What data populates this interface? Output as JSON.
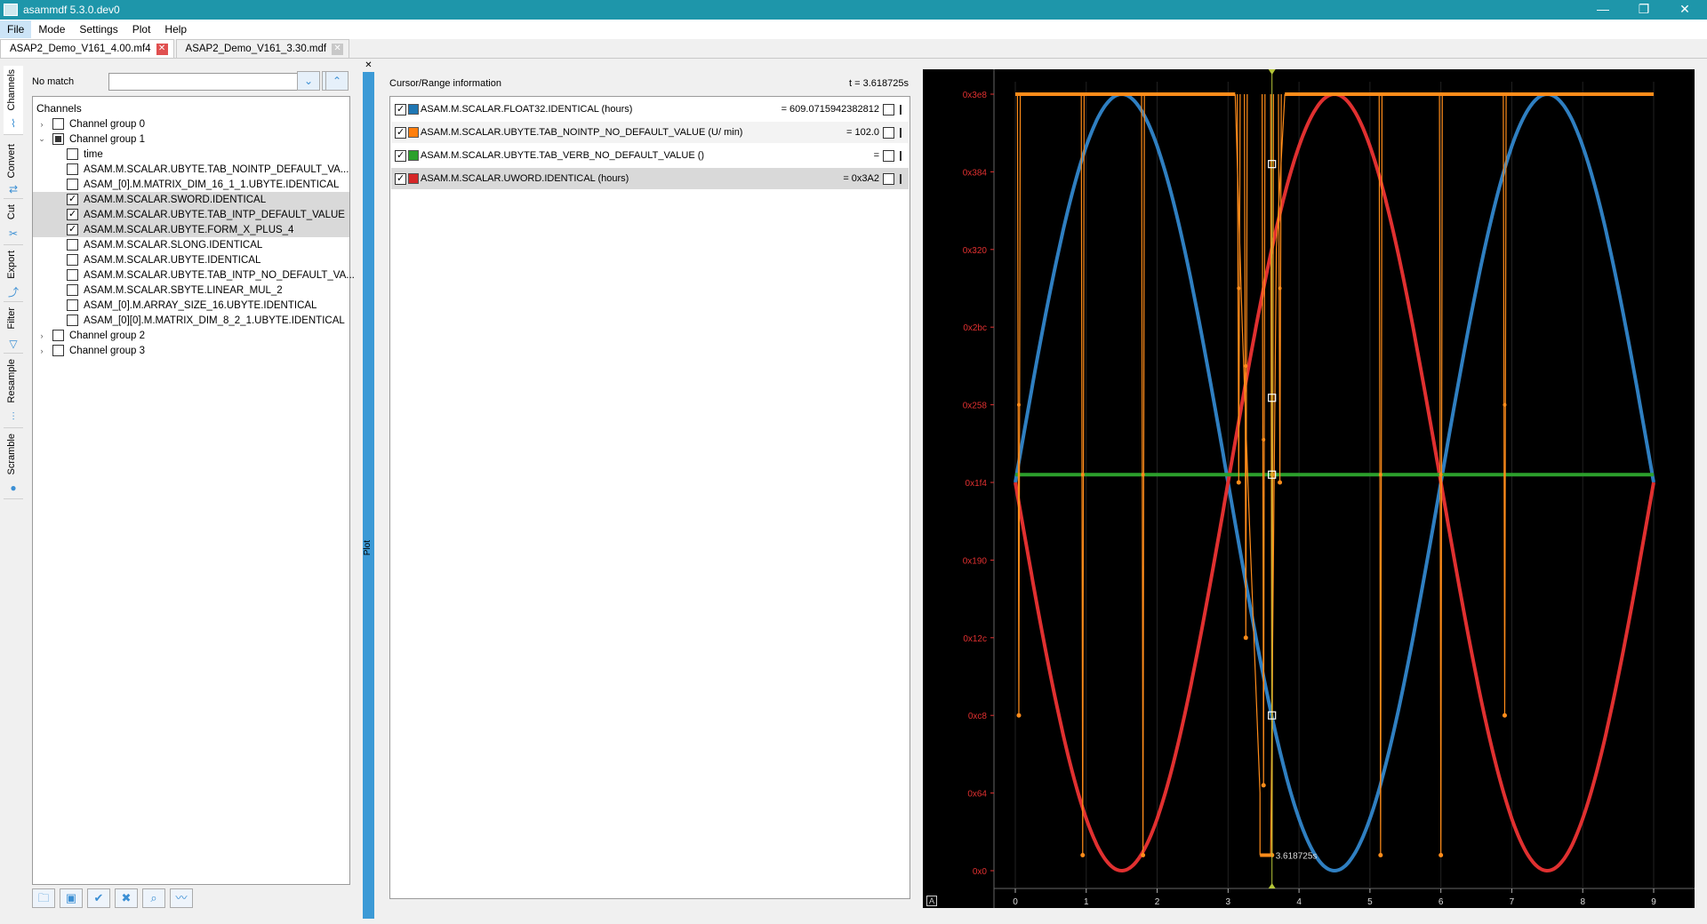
{
  "window": {
    "title": "asammdf 5.3.0.dev0",
    "controls": [
      "—",
      "❐",
      "✕"
    ]
  },
  "menu": [
    "File",
    "Mode",
    "Settings",
    "Plot",
    "Help"
  ],
  "file_tabs": [
    {
      "label": "ASAP2_Demo_V161_4.00.mf4",
      "active": true
    },
    {
      "label": "ASAP2_Demo_V161_3.30.mdf",
      "active": false
    }
  ],
  "side_tabs": [
    "Channels",
    "Convert",
    "Cut",
    "Export",
    "Filter",
    "Resample",
    "Scramble"
  ],
  "search": {
    "status": "No match",
    "value": ""
  },
  "tree": {
    "header": "Channels",
    "rows": [
      {
        "label": "Channel group 0",
        "level": 0,
        "expand": "›",
        "state": "none",
        "sel": false
      },
      {
        "label": "Channel group 1",
        "level": 0,
        "expand": "⌄",
        "state": "partial",
        "sel": false
      },
      {
        "label": "time",
        "level": 1,
        "expand": "",
        "state": "none",
        "sel": false
      },
      {
        "label": "ASAM.M.SCALAR.UBYTE.TAB_NOINTP_DEFAULT_VA...",
        "level": 1,
        "expand": "",
        "state": "none",
        "sel": false
      },
      {
        "label": "ASAM_[0].M.MATRIX_DIM_16_1_1.UBYTE.IDENTICAL",
        "level": 1,
        "expand": "",
        "state": "none",
        "sel": false
      },
      {
        "label": "ASAM.M.SCALAR.SWORD.IDENTICAL",
        "level": 1,
        "expand": "",
        "state": "checked",
        "sel": true
      },
      {
        "label": "ASAM.M.SCALAR.UBYTE.TAB_INTP_DEFAULT_VALUE",
        "level": 1,
        "expand": "",
        "state": "checked",
        "sel": true
      },
      {
        "label": "ASAM.M.SCALAR.UBYTE.FORM_X_PLUS_4",
        "level": 1,
        "expand": "",
        "state": "checked",
        "sel": true
      },
      {
        "label": "ASAM.M.SCALAR.SLONG.IDENTICAL",
        "level": 1,
        "expand": "",
        "state": "none",
        "sel": false
      },
      {
        "label": "ASAM.M.SCALAR.UBYTE.IDENTICAL",
        "level": 1,
        "expand": "",
        "state": "none",
        "sel": false
      },
      {
        "label": "ASAM.M.SCALAR.UBYTE.TAB_INTP_NO_DEFAULT_VA...",
        "level": 1,
        "expand": "",
        "state": "none",
        "sel": false
      },
      {
        "label": "ASAM.M.SCALAR.SBYTE.LINEAR_MUL_2",
        "level": 1,
        "expand": "",
        "state": "none",
        "sel": false
      },
      {
        "label": "ASAM_[0].M.ARRAY_SIZE_16.UBYTE.IDENTICAL",
        "level": 1,
        "expand": "",
        "state": "none",
        "sel": false
      },
      {
        "label": "ASAM_[0][0].M.MATRIX_DIM_8_2_1.UBYTE.IDENTICAL",
        "level": 1,
        "expand": "",
        "state": "none",
        "sel": false
      },
      {
        "label": "Channel group 2",
        "level": 0,
        "expand": "›",
        "state": "none",
        "sel": false
      },
      {
        "label": "Channel group 3",
        "level": 0,
        "expand": "›",
        "state": "none",
        "sel": false
      }
    ]
  },
  "tools": [
    {
      "name": "open-folder-icon",
      "glyph": "🗀"
    },
    {
      "name": "save-icon",
      "glyph": "▣"
    },
    {
      "name": "check-all-icon",
      "glyph": "✔"
    },
    {
      "name": "uncheck-all-icon",
      "glyph": "✖"
    },
    {
      "name": "search-icon",
      "glyph": "⌕"
    },
    {
      "name": "plot-icon",
      "glyph": "〰"
    }
  ],
  "divider": {
    "label": "Plot"
  },
  "cursor": {
    "title": "Cursor/Range information",
    "time": "t = 3.618725s",
    "signals": [
      {
        "name": "ASAM.M.SCALAR.FLOAT32.IDENTICAL (hours)",
        "value": "= 609.0715942382812",
        "color": "#1f77b4"
      },
      {
        "name": "ASAM.M.SCALAR.UBYTE.TAB_NOINTP_NO_DEFAULT_VALUE (U/ min)",
        "value": "= 102.0",
        "color": "#ff7f0e"
      },
      {
        "name": "ASAM.M.SCALAR.UBYTE.TAB_VERB_NO_DEFAULT_VALUE ()",
        "value": "=",
        "color": "#2ca02c"
      },
      {
        "name": "ASAM.M.SCALAR.UWORD.IDENTICAL (hours)",
        "value": "= 0x3A2",
        "color": "#d62728"
      }
    ]
  },
  "chart_data": {
    "type": "line",
    "xlim": [
      0,
      9
    ],
    "ylim": [
      0,
      1000
    ],
    "x_ticks": [
      0,
      1,
      2,
      3,
      4,
      5,
      6,
      7,
      8,
      9
    ],
    "y_ticks": [
      "0x0",
      "0x64",
      "0xc8",
      "0x12c",
      "0x190",
      "0x1f4",
      "0x258",
      "0x2bc",
      "0x320",
      "0x384",
      "0x3e8"
    ],
    "y_tick_values": [
      0,
      100,
      200,
      300,
      400,
      500,
      600,
      700,
      800,
      900,
      1000
    ],
    "cursor_x": 3.618725,
    "cursor_label": "3.618725s",
    "colors": {
      "blue": "#2f7fc1",
      "orange": "#ff8c1a",
      "green": "#2ca02c",
      "red": "#e03030",
      "yaxis": "#e03030",
      "cursor": "#b5c63a"
    },
    "series": [
      {
        "name": "ASAM.M.SCALAR.FLOAT32.IDENTICAL",
        "color": "#2f7fc1",
        "formula": "500+500*sin(2*pi*(x-0)/6 + 0.2*... )",
        "kind": "sine",
        "amp": 500,
        "offset": 500,
        "period": 6.0,
        "phase_x": 1.5,
        "peak": true
      },
      {
        "name": "ASAM.M.SCALAR.UWORD.IDENTICAL",
        "color": "#e03030",
        "kind": "sine",
        "amp": 500,
        "offset": 500,
        "period": 6.0,
        "phase_x": 4.5,
        "peak": true
      },
      {
        "name": "ASAM.M.SCALAR.UBYTE.TAB_VERB_NO_DEFAULT_VALUE",
        "color": "#2ca02c",
        "kind": "const",
        "value": 510
      },
      {
        "name": "ASAM.M.SCALAR.UBYTE.TAB_NOINTP_NO_DEFAULT_VALUE",
        "color": "#ff8c1a",
        "kind": "step",
        "top_segments": [
          [
            0,
            3.1
          ],
          [
            3.8,
            9
          ]
        ],
        "spikes": [
          {
            "x": 0.05,
            "min": 200
          },
          {
            "x": 0.95,
            "min": 20
          },
          {
            "x": 1.8,
            "min": 20
          },
          {
            "x": 3.15,
            "min": 500
          },
          {
            "x": 3.25,
            "min": 300
          },
          {
            "x": 3.5,
            "min": 110
          },
          {
            "x": 3.62,
            "min": 20
          },
          {
            "x": 3.73,
            "min": 500
          },
          {
            "x": 5.15,
            "min": 20
          },
          {
            "x": 6.0,
            "min": 20
          },
          {
            "x": 6.9,
            "min": 200
          }
        ],
        "bottom_segment": [
          3.45,
          3.6
        ],
        "bottom_value": 20
      }
    ]
  }
}
